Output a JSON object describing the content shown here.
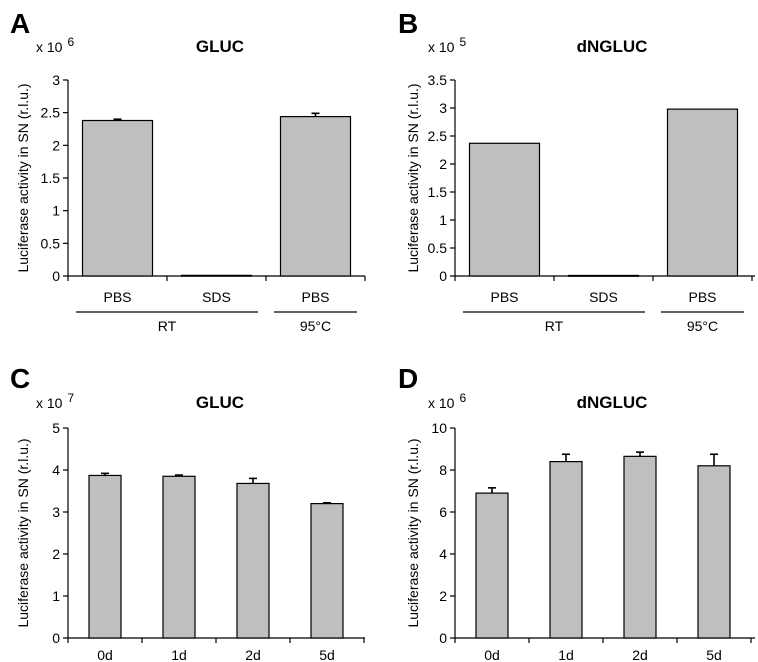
{
  "chart_data": [
    {
      "panel": "A",
      "type": "bar",
      "title": "GLUC",
      "ylabel": "Luciferase activity in SN (r.l.u.)",
      "multiplier": {
        "base": "x 10",
        "exponent": "6"
      },
      "ylim": [
        0,
        3
      ],
      "yticks": [
        "0",
        "0.5",
        "1",
        "1.5",
        "2",
        "2.5",
        "3"
      ],
      "categories": [
        "PBS",
        "SDS",
        "PBS"
      ],
      "values": [
        2.38,
        0.01,
        2.44
      ],
      "errors": [
        0.02,
        0.0,
        0.05
      ],
      "groups": [
        {
          "label": "RT",
          "span": [
            0,
            1
          ]
        },
        {
          "label": "95°C",
          "span": [
            2,
            2
          ]
        }
      ]
    },
    {
      "panel": "B",
      "type": "bar",
      "title": "dNGLUC",
      "ylabel": "Luciferase activity in SN (r.l.u.)",
      "multiplier": {
        "base": "x 10",
        "exponent": "5"
      },
      "ylim": [
        0,
        3.5
      ],
      "yticks": [
        "0",
        "0.5",
        "1",
        "1.5",
        "2",
        "2.5",
        "3",
        "3.5"
      ],
      "categories": [
        "PBS",
        "SDS",
        "PBS"
      ],
      "values": [
        2.37,
        0.01,
        2.98
      ],
      "errors": [
        0.0,
        0.0,
        0.0
      ],
      "groups": [
        {
          "label": "RT",
          "span": [
            0,
            1
          ]
        },
        {
          "label": "95°C",
          "span": [
            2,
            2
          ]
        }
      ]
    },
    {
      "panel": "C",
      "type": "bar",
      "title": "GLUC",
      "ylabel": "Luciferase activity in SN (r.l.u.)",
      "multiplier": {
        "base": "x 10",
        "exponent": "7"
      },
      "ylim": [
        0,
        5
      ],
      "yticks": [
        "0",
        "1",
        "2",
        "3",
        "4",
        "5"
      ],
      "categories": [
        "0d",
        "1d",
        "2d",
        "5d"
      ],
      "values": [
        3.87,
        3.85,
        3.68,
        3.2
      ],
      "errors": [
        0.05,
        0.03,
        0.12,
        0.02
      ],
      "groups": []
    },
    {
      "panel": "D",
      "type": "bar",
      "title": "dNGLUC",
      "ylabel": "Luciferase activity in SN (r.l.u.)",
      "multiplier": {
        "base": "x 10",
        "exponent": "6"
      },
      "ylim": [
        0,
        10
      ],
      "yticks": [
        "0",
        "2",
        "4",
        "6",
        "8",
        "10"
      ],
      "categories": [
        "0d",
        "1d",
        "2d",
        "5d"
      ],
      "values": [
        6.9,
        8.4,
        8.65,
        8.2
      ],
      "errors": [
        0.25,
        0.35,
        0.2,
        0.55
      ],
      "groups": []
    }
  ]
}
